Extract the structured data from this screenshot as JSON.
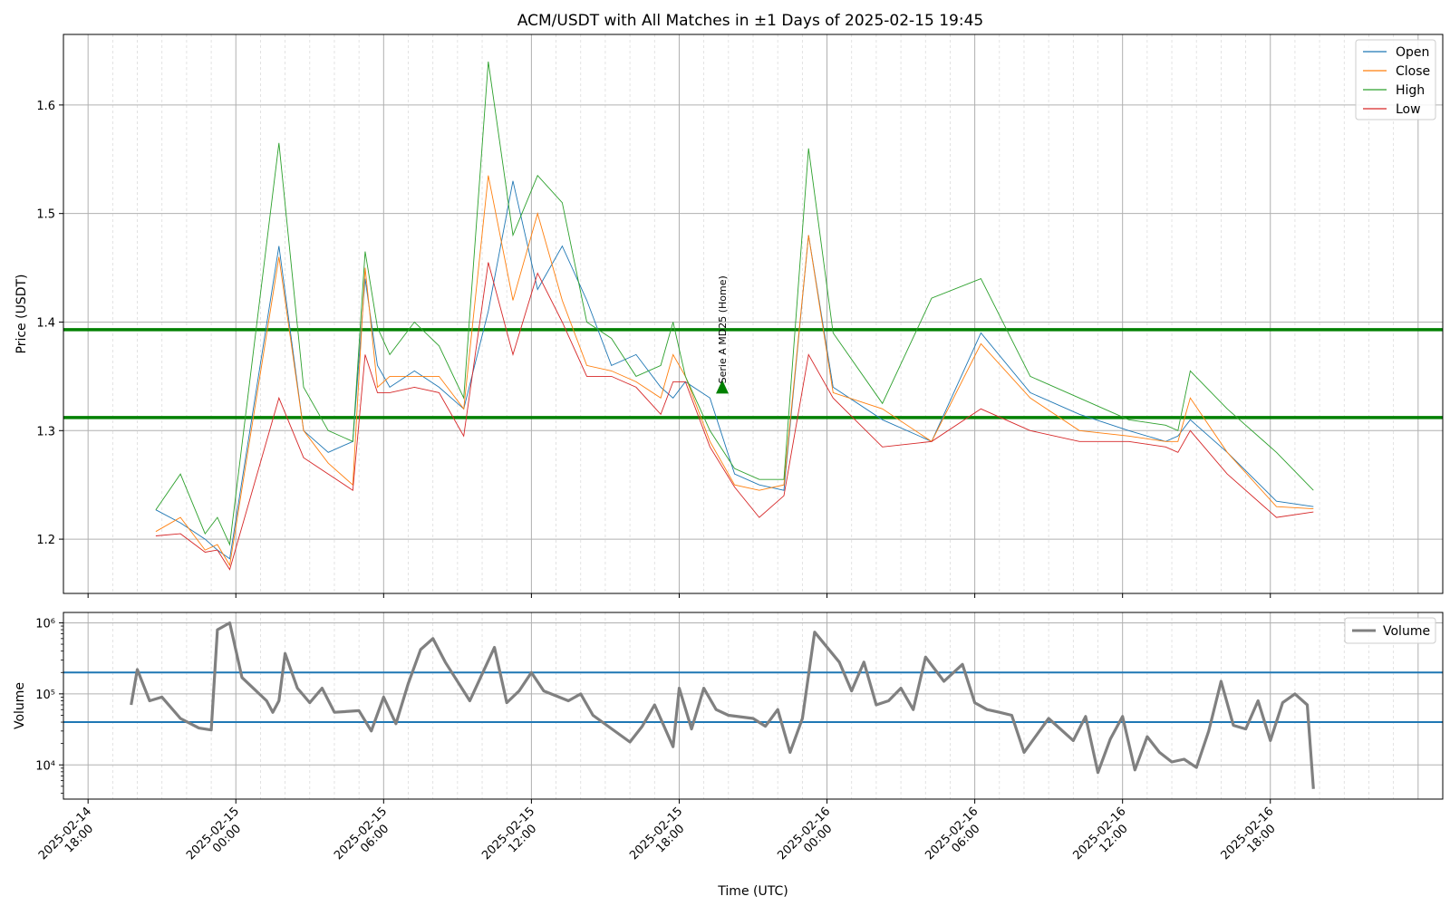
{
  "chart_data": [
    {
      "type": "line",
      "title": "ACM/USDT with All Matches in ±1 Days of 2025-02-15 19:45",
      "xlabel": "",
      "ylabel": "Price (USDT)",
      "xlim": [
        "2025-02-14 17:00",
        "2025-02-17 01:00"
      ],
      "ylim": [
        1.15,
        1.665
      ],
      "yticks": [
        1.2,
        1.3,
        1.4,
        1.5,
        1.6
      ],
      "grid": true,
      "legend": "top-right",
      "x": [
        "2025-02-14 20:45",
        "2025-02-14 21:45",
        "2025-02-14 22:45",
        "2025-02-14 23:15",
        "2025-02-14 23:45",
        "2025-02-15 01:45",
        "2025-02-15 02:45",
        "2025-02-15 03:45",
        "2025-02-15 04:45",
        "2025-02-15 05:15",
        "2025-02-15 05:45",
        "2025-02-15 06:15",
        "2025-02-15 07:15",
        "2025-02-15 08:15",
        "2025-02-15 09:15",
        "2025-02-15 10:15",
        "2025-02-15 11:15",
        "2025-02-15 12:15",
        "2025-02-15 13:15",
        "2025-02-15 14:15",
        "2025-02-15 15:15",
        "2025-02-15 16:15",
        "2025-02-15 17:15",
        "2025-02-15 17:45",
        "2025-02-15 18:15",
        "2025-02-15 19:15",
        "2025-02-15 20:15",
        "2025-02-15 21:15",
        "2025-02-15 22:15",
        "2025-02-15 23:15",
        "2025-02-16 00:15",
        "2025-02-16 02:15",
        "2025-02-16 04:15",
        "2025-02-16 06:15",
        "2025-02-16 08:15",
        "2025-02-16 10:15",
        "2025-02-16 12:15",
        "2025-02-16 13:45",
        "2025-02-16 14:15",
        "2025-02-16 14:45",
        "2025-02-16 16:15",
        "2025-02-16 18:15",
        "2025-02-16 19:45"
      ],
      "series": [
        {
          "name": "Open",
          "color": "#1f77b4",
          "values": [
            1.227,
            1.215,
            1.2,
            1.19,
            1.182,
            1.47,
            1.3,
            1.28,
            1.29,
            1.44,
            1.36,
            1.34,
            1.355,
            1.34,
            1.32,
            1.41,
            1.53,
            1.43,
            1.47,
            1.42,
            1.36,
            1.37,
            1.34,
            1.33,
            1.345,
            1.33,
            1.26,
            1.25,
            1.245,
            1.48,
            1.34,
            1.31,
            1.29,
            1.39,
            1.335,
            1.315,
            1.3,
            1.29,
            1.295,
            1.31,
            1.28,
            1.235,
            1.23
          ]
        },
        {
          "name": "Close",
          "color": "#ff7f0e",
          "values": [
            1.207,
            1.22,
            1.19,
            1.195,
            1.176,
            1.46,
            1.3,
            1.27,
            1.25,
            1.45,
            1.34,
            1.35,
            1.35,
            1.35,
            1.32,
            1.535,
            1.42,
            1.5,
            1.42,
            1.36,
            1.355,
            1.345,
            1.33,
            1.37,
            1.35,
            1.29,
            1.25,
            1.245,
            1.25,
            1.48,
            1.335,
            1.32,
            1.29,
            1.38,
            1.33,
            1.3,
            1.295,
            1.29,
            1.29,
            1.33,
            1.28,
            1.23,
            1.228
          ]
        },
        {
          "name": "High",
          "color": "#2ca02c",
          "values": [
            1.227,
            1.26,
            1.205,
            1.22,
            1.195,
            1.565,
            1.34,
            1.3,
            1.29,
            1.465,
            1.395,
            1.37,
            1.4,
            1.378,
            1.33,
            1.64,
            1.48,
            1.535,
            1.51,
            1.4,
            1.385,
            1.35,
            1.36,
            1.4,
            1.35,
            1.3,
            1.265,
            1.255,
            1.255,
            1.56,
            1.39,
            1.325,
            1.422,
            1.44,
            1.35,
            1.33,
            1.31,
            1.305,
            1.3,
            1.355,
            1.32,
            1.28,
            1.245
          ]
        },
        {
          "name": "Low",
          "color": "#d62728",
          "values": [
            1.203,
            1.205,
            1.188,
            1.19,
            1.172,
            1.33,
            1.275,
            1.26,
            1.245,
            1.37,
            1.335,
            1.335,
            1.34,
            1.335,
            1.295,
            1.455,
            1.37,
            1.445,
            1.4,
            1.35,
            1.35,
            1.34,
            1.315,
            1.345,
            1.345,
            1.285,
            1.248,
            1.22,
            1.24,
            1.37,
            1.33,
            1.285,
            1.29,
            1.32,
            1.3,
            1.29,
            1.29,
            1.285,
            1.28,
            1.3,
            1.26,
            1.22,
            1.225
          ]
        }
      ],
      "hlines": [
        {
          "y": 1.393,
          "color": "#008000"
        },
        {
          "y": 1.312,
          "color": "#008000"
        }
      ],
      "annotations": [
        {
          "x": "2025-02-15 19:45",
          "y": 1.34,
          "text": "Serie A MD25 (Home)",
          "marker": "triangle-up",
          "color": "#008000"
        }
      ]
    },
    {
      "type": "line",
      "title": "",
      "xlabel": "Time (UTC)",
      "ylabel": "Volume",
      "yscale": "log",
      "ylim": [
        3300,
        1400000
      ],
      "yticks": [
        {
          "value": 10000,
          "label": "10⁴"
        },
        {
          "value": 100000,
          "label": "10⁵"
        },
        {
          "value": 1000000,
          "label": "10⁶"
        }
      ],
      "xticks": [
        {
          "x": "2025-02-14 18:00",
          "line1": "2025-02-14",
          "line2": "18:00"
        },
        {
          "x": "2025-02-15 00:00",
          "line1": "2025-02-15",
          "line2": "00:00"
        },
        {
          "x": "2025-02-15 06:00",
          "line1": "2025-02-15",
          "line2": "06:00"
        },
        {
          "x": "2025-02-15 12:00",
          "line1": "2025-02-15",
          "line2": "12:00"
        },
        {
          "x": "2025-02-15 18:00",
          "line1": "2025-02-15",
          "line2": "18:00"
        },
        {
          "x": "2025-02-16 00:00",
          "line1": "2025-02-16",
          "line2": "00:00"
        },
        {
          "x": "2025-02-16 06:00",
          "line1": "2025-02-16",
          "line2": "06:00"
        },
        {
          "x": "2025-02-16 12:00",
          "line1": "2025-02-16",
          "line2": "12:00"
        },
        {
          "x": "2025-02-16 18:00",
          "line1": "2025-02-16",
          "line2": "18:00"
        }
      ],
      "grid": true,
      "legend": "top-right",
      "x": [
        "2025-02-14 19:45",
        "2025-02-14 20:00",
        "2025-02-14 20:30",
        "2025-02-14 21:00",
        "2025-02-14 21:45",
        "2025-02-14 22:30",
        "2025-02-14 23:00",
        "2025-02-14 23:15",
        "2025-02-14 23:45",
        "2025-02-15 00:15",
        "2025-02-15 01:15",
        "2025-02-15 01:30",
        "2025-02-15 01:45",
        "2025-02-15 02:00",
        "2025-02-15 02:30",
        "2025-02-15 03:00",
        "2025-02-15 03:30",
        "2025-02-15 04:00",
        "2025-02-15 05:00",
        "2025-02-15 05:30",
        "2025-02-15 06:00",
        "2025-02-15 06:30",
        "2025-02-15 07:00",
        "2025-02-15 07:30",
        "2025-02-15 08:00",
        "2025-02-15 08:30",
        "2025-02-15 09:30",
        "2025-02-15 10:30",
        "2025-02-15 11:00",
        "2025-02-15 11:30",
        "2025-02-15 12:00",
        "2025-02-15 12:30",
        "2025-02-15 13:30",
        "2025-02-15 14:00",
        "2025-02-15 14:30",
        "2025-02-15 16:00",
        "2025-02-15 16:30",
        "2025-02-15 17:00",
        "2025-02-15 17:45",
        "2025-02-15 18:00",
        "2025-02-15 18:30",
        "2025-02-15 19:00",
        "2025-02-15 19:30",
        "2025-02-15 20:00",
        "2025-02-15 21:00",
        "2025-02-15 21:30",
        "2025-02-15 22:00",
        "2025-02-15 22:30",
        "2025-02-15 23:00",
        "2025-02-15 23:30",
        "2025-02-16 00:30",
        "2025-02-16 01:00",
        "2025-02-16 01:30",
        "2025-02-16 02:00",
        "2025-02-16 02:30",
        "2025-02-16 03:00",
        "2025-02-16 03:30",
        "2025-02-16 04:00",
        "2025-02-16 04:45",
        "2025-02-16 05:30",
        "2025-02-16 06:00",
        "2025-02-16 06:30",
        "2025-02-16 07:00",
        "2025-02-16 07:30",
        "2025-02-16 08:00",
        "2025-02-16 09:00",
        "2025-02-16 10:00",
        "2025-02-16 10:30",
        "2025-02-16 11:00",
        "2025-02-16 11:30",
        "2025-02-16 12:00",
        "2025-02-16 12:30",
        "2025-02-16 13:00",
        "2025-02-16 13:30",
        "2025-02-16 14:00",
        "2025-02-16 14:30",
        "2025-02-16 15:00",
        "2025-02-16 15:30",
        "2025-02-16 16:00",
        "2025-02-16 16:30",
        "2025-02-16 17:00",
        "2025-02-16 17:30",
        "2025-02-16 18:00",
        "2025-02-16 18:30",
        "2025-02-16 19:00",
        "2025-02-16 19:30",
        "2025-02-16 19:45"
      ],
      "series": [
        {
          "name": "Volume",
          "color": "#808080",
          "values": [
            70000,
            220000,
            80000,
            90000,
            45000,
            33000,
            31000,
            800000,
            1000000,
            170000,
            80000,
            55000,
            80000,
            370000,
            120000,
            75000,
            120000,
            55000,
            58000,
            30000,
            90000,
            38000,
            140000,
            420000,
            600000,
            280000,
            80000,
            450000,
            75000,
            110000,
            200000,
            110000,
            80000,
            100000,
            50000,
            21000,
            35000,
            70000,
            18000,
            120000,
            32000,
            120000,
            60000,
            50000,
            45000,
            35000,
            60000,
            15000,
            45000,
            740000,
            280000,
            110000,
            280000,
            70000,
            80000,
            120000,
            60000,
            330000,
            150000,
            260000,
            75000,
            60000,
            55000,
            50000,
            15000,
            45000,
            22000,
            48000,
            7800,
            23000,
            48000,
            8500,
            25000,
            15000,
            11000,
            12000,
            9200,
            30000,
            150000,
            36000,
            32000,
            80000,
            22000,
            75000,
            100000,
            70000,
            4600
          ]
        }
      ],
      "hlines": [
        {
          "y": 200000,
          "color": "#1f77b4"
        },
        {
          "y": 40000,
          "color": "#1f77b4"
        }
      ]
    }
  ]
}
